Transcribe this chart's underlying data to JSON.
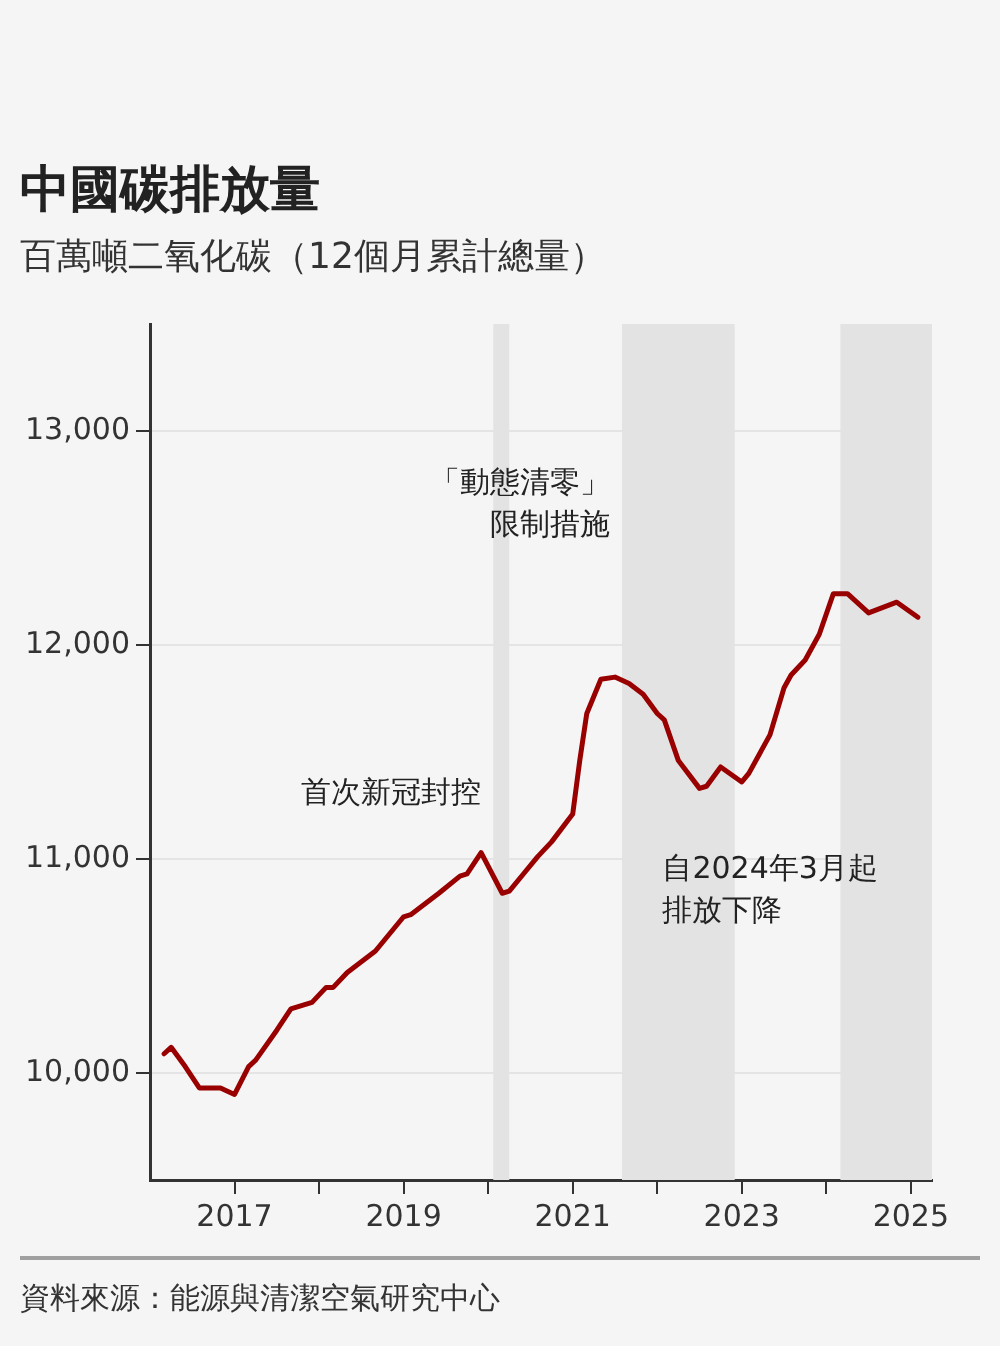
{
  "chart_data": {
    "type": "line",
    "title": "中國碳排放量",
    "subtitle": "百萬噸二氧化碳（12個月累計總量）",
    "x": [
      "2016-03",
      "2016-04",
      "2016-06",
      "2016-08",
      "2016-11",
      "2017-01",
      "2017-03",
      "2017-04",
      "2017-07",
      "2017-09",
      "2017-12",
      "2018-02",
      "2018-03",
      "2018-05",
      "2018-09",
      "2019-01",
      "2019-02",
      "2019-04",
      "2019-06",
      "2019-09",
      "2019-10",
      "2019-12",
      "2020-03",
      "2020-04",
      "2020-06",
      "2020-08",
      "2020-10",
      "2021-01",
      "2021-02",
      "2021-03",
      "2021-05",
      "2021-07",
      "2021-09",
      "2021-11",
      "2022-01",
      "2022-02",
      "2022-04",
      "2022-07",
      "2022-08",
      "2022-10",
      "2023-01",
      "2023-02",
      "2023-05",
      "2023-07",
      "2023-08",
      "2023-10",
      "2023-12",
      "2024-02",
      "2024-04",
      "2024-07",
      "2024-11",
      "2025-02"
    ],
    "series": [
      {
        "color": "#990000",
        "values": [
          10090,
          10120,
          10030,
          9930,
          9930,
          9900,
          10030,
          10060,
          10200,
          10300,
          10330,
          10400,
          10400,
          10470,
          10570,
          10730,
          10740,
          10790,
          10840,
          10920,
          10930,
          11030,
          10840,
          10850,
          10930,
          11010,
          11080,
          11210,
          11460,
          11680,
          11840,
          11850,
          11820,
          11770,
          11680,
          11650,
          11460,
          11330,
          11340,
          11430,
          11360,
          11400,
          11580,
          11800,
          11860,
          11930,
          12050,
          12240,
          12240,
          12150,
          12200,
          12130
        ]
      }
    ],
    "xlim": [
      "2016-01",
      "2025-04"
    ],
    "xticks": [
      {
        "value": "2017",
        "label": "2017"
      },
      {
        "value": "2018",
        "label": null
      },
      {
        "value": "2019",
        "label": "2019"
      },
      {
        "value": "2020",
        "label": null
      },
      {
        "value": "2021",
        "label": "2021"
      },
      {
        "value": "2022",
        "label": null
      },
      {
        "value": "2023",
        "label": "2023"
      },
      {
        "value": "2024",
        "label": null
      },
      {
        "value": "2025",
        "label": "2025"
      }
    ],
    "ylim": [
      9500,
      13500
    ],
    "yticks": [
      {
        "value": 10000,
        "label": "10,000"
      },
      {
        "value": 11000,
        "label": "11,000"
      },
      {
        "value": 12000,
        "label": "12,000"
      },
      {
        "value": 13000,
        "label": "13,000"
      }
    ],
    "bands": [
      {
        "axis": "x",
        "from": "2020-01-23",
        "to": "2020-04-01",
        "label": "首次新冠封控",
        "color": "#e3e3e3"
      },
      {
        "axis": "x",
        "from": "2021-08",
        "to": "2022-12",
        "label": "「動態清零」限制措施",
        "color": "#e3e3e3"
      },
      {
        "axis": "x",
        "from": "2024-03",
        "to": "2025-04",
        "label": "自2024年3月起排放下降",
        "color": "#e3e3e3"
      }
    ],
    "grid": "y",
    "legend": false,
    "marker": "none",
    "line_style": "solid",
    "annotations": [
      "資料來源：能源與清潔空氣研究中心"
    ]
  }
}
